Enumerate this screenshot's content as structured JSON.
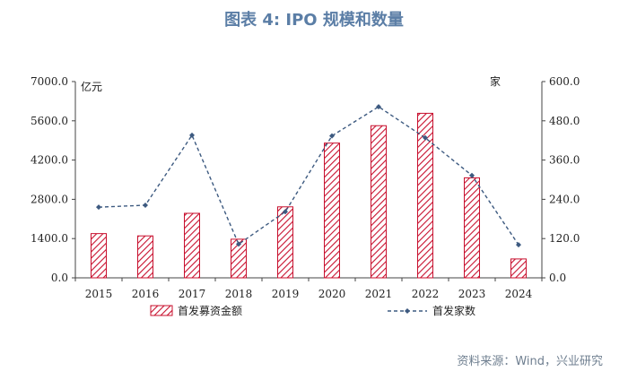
{
  "figure": {
    "title": "图表 4: IPO 规模和数量",
    "source": "资料来源：Wind，兴业研究"
  },
  "chart_data": {
    "type": "bar+line",
    "categories": [
      "2015",
      "2016",
      "2017",
      "2018",
      "2019",
      "2020",
      "2021",
      "2022",
      "2023",
      "2024"
    ],
    "left_axis": {
      "unit_label": "亿元",
      "range": [
        0,
        7000
      ],
      "ticks": [
        "0.0",
        "1400.0",
        "2800.0",
        "4200.0",
        "5600.0",
        "7000.0"
      ]
    },
    "right_axis": {
      "unit_label": "家",
      "range": [
        0,
        600
      ],
      "ticks": [
        "0.0",
        "120.0",
        "240.0",
        "360.0",
        "480.0",
        "600.0"
      ]
    },
    "series": [
      {
        "name": "首发募资金额",
        "type": "bar",
        "axis": "left",
        "values": [
          1578,
          1496,
          2301,
          1378,
          2532,
          4806,
          5426,
          5868,
          3565,
          674
        ]
      },
      {
        "name": "首发家数",
        "type": "line",
        "axis": "right",
        "values": [
          216,
          222,
          436,
          103,
          202,
          434,
          523,
          428,
          313,
          101
        ]
      }
    ],
    "colors": {
      "bar": "#c8102e",
      "line": "#3d5a80",
      "axis": "#444444"
    }
  }
}
